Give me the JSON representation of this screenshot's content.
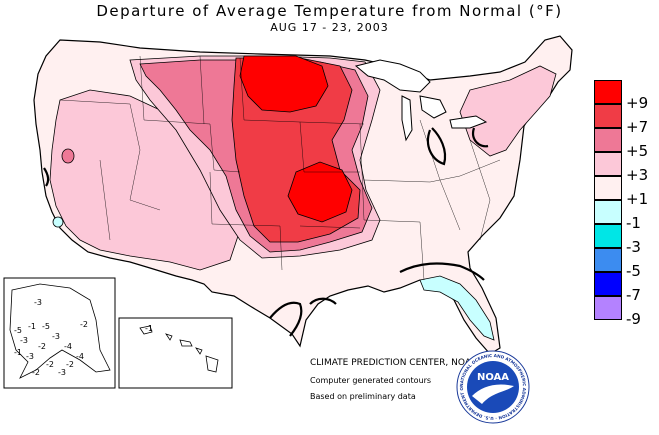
{
  "title": "Departure of Average Temperature from Normal (°F)",
  "subtitle": "AUG 17 - 23, 2003",
  "legend": [
    {
      "label": "+9",
      "color": "#ff0000"
    },
    {
      "label": "+7",
      "color": "#f03c46"
    },
    {
      "label": "+5",
      "color": "#ee7896"
    },
    {
      "label": "+3",
      "color": "#fcc8d8"
    },
    {
      "label": "+1",
      "color": "#fff0f0"
    },
    {
      "label": "-1",
      "color": "#c8ffff"
    },
    {
      "label": "-3",
      "color": "#00e6e6"
    },
    {
      "label": "-5",
      "color": "#3c8cf0"
    },
    {
      "label": "-7",
      "color": "#0000ff"
    },
    {
      "label": "-9",
      "color": "#b482ff"
    }
  ],
  "credits": {
    "center": "CLIMATE PREDICTION CENTER, NOAA",
    "line2": "Computer generated contours",
    "line3": "Based on preliminary data"
  },
  "logo": {
    "text": "NOAA",
    "ring_text": "NATIONAL OCEANIC AND ATMOSPHERIC ADMINISTRATION · U.S. DEPARTMENT OF COMMERCE"
  },
  "alaska_labels": [
    "-3",
    "-1",
    "-5",
    "-3",
    "-2",
    "-2",
    "-3",
    "-4",
    "-3",
    "-4",
    "-2",
    "-1",
    "-2",
    "-5",
    "-2",
    "-3"
  ],
  "hawaii_labels": [
    "-1"
  ]
}
